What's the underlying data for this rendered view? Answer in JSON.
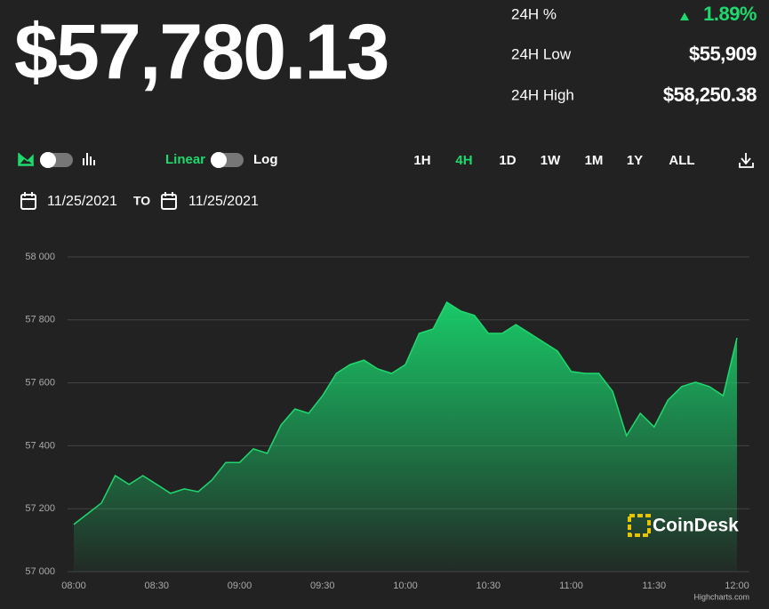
{
  "header": {
    "price": "$57,780.13",
    "stats": [
      {
        "label": "24H %",
        "value": "1.89%"
      },
      {
        "label": "24H Low",
        "value": "$55,909"
      },
      {
        "label": "24H High",
        "value": "$58,250.38"
      }
    ]
  },
  "controls": {
    "scale": [
      "Linear",
      "Log"
    ],
    "ranges": [
      "1H",
      "4H",
      "1D",
      "1W",
      "1M",
      "1Y",
      "ALL"
    ],
    "active_range": 1,
    "from": "11/25/2021",
    "to_label": "TO",
    "to": "11/25/2021"
  },
  "watermark": "CoinDesk",
  "credit": "Highcharts.com",
  "chart_data": {
    "type": "area",
    "color": "#1fd96e",
    "x": [
      "08:00",
      "08:05",
      "08:10",
      "08:15",
      "08:20",
      "08:25",
      "08:30",
      "08:35",
      "08:40",
      "08:45",
      "08:50",
      "08:55",
      "09:00",
      "09:05",
      "09:10",
      "09:15",
      "09:20",
      "09:25",
      "09:30",
      "09:35",
      "09:40",
      "09:45",
      "09:50",
      "09:55",
      "10:00",
      "10:05",
      "10:10",
      "10:15",
      "10:20",
      "10:25",
      "10:30",
      "10:35",
      "10:40",
      "10:45",
      "10:50",
      "10:55",
      "11:00",
      "11:05",
      "11:10",
      "11:15",
      "11:20",
      "11:25",
      "11:30",
      "11:35",
      "11:40",
      "11:45",
      "11:50",
      "11:55",
      "12:00"
    ],
    "values": [
      57150,
      57184,
      57218,
      57305,
      57277,
      57305,
      57277,
      57249,
      57263,
      57254,
      57291,
      57347,
      57347,
      57390,
      57376,
      57466,
      57517,
      57503,
      57559,
      57630,
      57658,
      57672,
      57644,
      57630,
      57658,
      57757,
      57771,
      57856,
      57828,
      57814,
      57757,
      57757,
      57785,
      57757,
      57729,
      57701,
      57636,
      57630,
      57630,
      57573,
      57432,
      57503,
      57460,
      57545,
      57588,
      57602,
      57588,
      57559,
      57743
    ],
    "ylim": [
      57000,
      58000
    ],
    "yticks": [
      {
        "value": 57000,
        "label": "57 000"
      },
      {
        "value": 57200,
        "label": "57 200"
      },
      {
        "value": 57400,
        "label": "57 400"
      },
      {
        "value": 57600,
        "label": "57 600"
      },
      {
        "value": 57800,
        "label": "57 800"
      },
      {
        "value": 58000,
        "label": "58 000"
      }
    ],
    "xticks": [
      "08:00",
      "08:30",
      "09:00",
      "09:30",
      "10:00",
      "10:30",
      "11:00",
      "11:30",
      "12:00"
    ],
    "grid": true
  }
}
